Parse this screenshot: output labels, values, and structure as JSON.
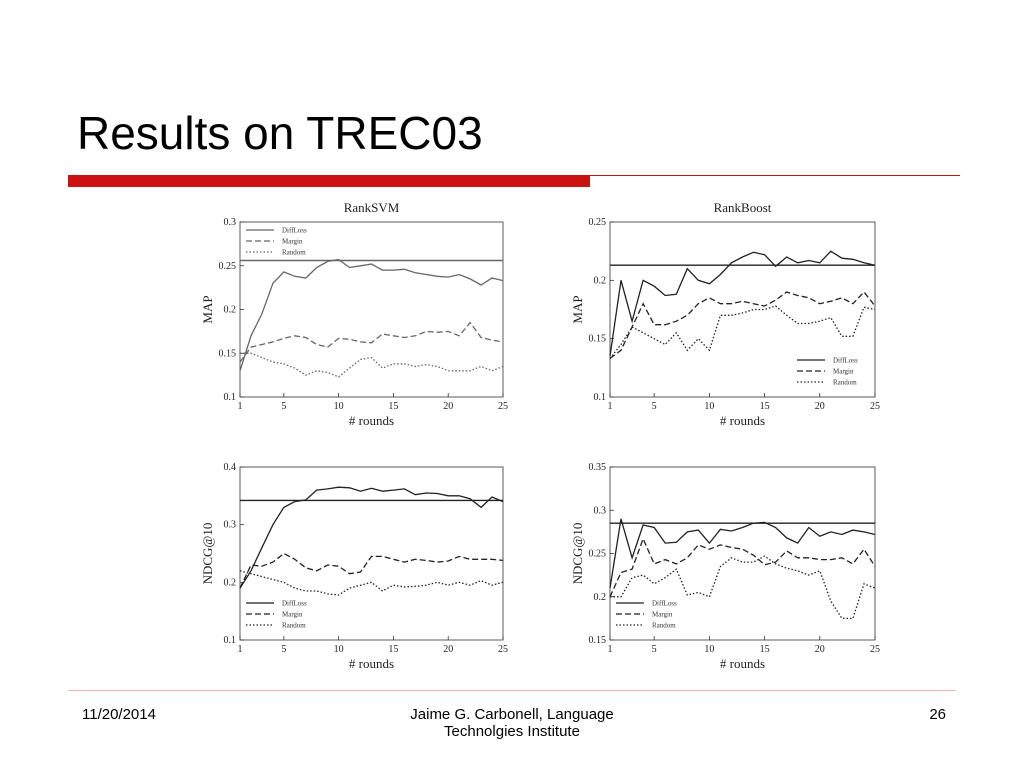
{
  "slide": {
    "title": "Results on TREC03",
    "date": "11/20/2014",
    "author": "Jaime G. Carbonell, Language Technolgies Institute",
    "page": "26"
  },
  "chart_data": [
    {
      "type": "line",
      "title": "RankSVM",
      "y_label": "MAP",
      "x_label": "# rounds",
      "x": [
        1,
        2,
        3,
        4,
        5,
        6,
        7,
        8,
        9,
        10,
        11,
        12,
        13,
        14,
        15,
        16,
        17,
        18,
        19,
        20,
        21,
        22,
        23,
        24,
        25
      ],
      "xlim": [
        1,
        25
      ],
      "xticks": [
        1,
        5,
        10,
        15,
        20,
        25
      ],
      "ylim": [
        0.1,
        0.3
      ],
      "yticks": [
        0.1,
        0.15,
        0.2,
        0.25,
        0.3
      ],
      "baseline": 0.256,
      "legend": "upper left",
      "color": "#666666",
      "series": [
        {
          "name": "DiffLoss",
          "style": "solid",
          "values": [
            0.13,
            0.17,
            0.195,
            0.23,
            0.243,
            0.238,
            0.236,
            0.248,
            0.255,
            0.257,
            0.248,
            0.25,
            0.252,
            0.245,
            0.245,
            0.246,
            0.242,
            0.24,
            0.238,
            0.237,
            0.24,
            0.235,
            0.228,
            0.236,
            0.233
          ]
        },
        {
          "name": "Margin",
          "style": "dashed",
          "values": [
            0.14,
            0.157,
            0.16,
            0.163,
            0.167,
            0.17,
            0.168,
            0.16,
            0.157,
            0.167,
            0.166,
            0.163,
            0.162,
            0.172,
            0.17,
            0.168,
            0.17,
            0.175,
            0.174,
            0.175,
            0.17,
            0.185,
            0.168,
            0.165,
            0.163
          ]
        },
        {
          "name": "Random",
          "style": "dotted",
          "values": [
            0.15,
            0.15,
            0.145,
            0.14,
            0.138,
            0.133,
            0.125,
            0.13,
            0.128,
            0.123,
            0.133,
            0.143,
            0.145,
            0.133,
            0.138,
            0.138,
            0.135,
            0.137,
            0.135,
            0.13,
            0.13,
            0.13,
            0.135,
            0.13,
            0.135
          ]
        }
      ]
    },
    {
      "type": "line",
      "title": "RankBoost",
      "y_label": "MAP",
      "x_label": "# rounds",
      "x": [
        1,
        2,
        3,
        4,
        5,
        6,
        7,
        8,
        9,
        10,
        11,
        12,
        13,
        14,
        15,
        16,
        17,
        18,
        19,
        20,
        21,
        22,
        23,
        24,
        25
      ],
      "xlim": [
        1,
        25
      ],
      "xticks": [
        1,
        5,
        10,
        15,
        20,
        25
      ],
      "ylim": [
        0.1,
        0.25
      ],
      "yticks": [
        0.1,
        0.15,
        0.2,
        0.25
      ],
      "baseline": 0.213,
      "legend": "lower right",
      "color": "#222222",
      "series": [
        {
          "name": "DiffLoss",
          "style": "solid",
          "values": [
            0.135,
            0.2,
            0.165,
            0.2,
            0.195,
            0.187,
            0.188,
            0.21,
            0.2,
            0.197,
            0.205,
            0.215,
            0.22,
            0.224,
            0.222,
            0.212,
            0.22,
            0.215,
            0.217,
            0.215,
            0.225,
            0.219,
            0.218,
            0.215,
            0.213
          ]
        },
        {
          "name": "Margin",
          "style": "dashed",
          "values": [
            0.133,
            0.14,
            0.16,
            0.18,
            0.162,
            0.162,
            0.165,
            0.17,
            0.18,
            0.185,
            0.18,
            0.18,
            0.182,
            0.18,
            0.178,
            0.183,
            0.19,
            0.187,
            0.185,
            0.18,
            0.182,
            0.185,
            0.18,
            0.19,
            0.178
          ]
        },
        {
          "name": "Random",
          "style": "dotted",
          "values": [
            0.133,
            0.145,
            0.16,
            0.155,
            0.15,
            0.145,
            0.155,
            0.14,
            0.15,
            0.14,
            0.17,
            0.17,
            0.172,
            0.175,
            0.175,
            0.178,
            0.17,
            0.163,
            0.163,
            0.165,
            0.168,
            0.152,
            0.152,
            0.177,
            0.175
          ]
        }
      ]
    },
    {
      "type": "line",
      "y_label": "NDCG@10",
      "x_label": "# rounds",
      "x": [
        1,
        2,
        3,
        4,
        5,
        6,
        7,
        8,
        9,
        10,
        11,
        12,
        13,
        14,
        15,
        16,
        17,
        18,
        19,
        20,
        21,
        22,
        23,
        24,
        25
      ],
      "xlim": [
        1,
        25
      ],
      "xticks": [
        1,
        5,
        10,
        15,
        20,
        25
      ],
      "ylim": [
        0.1,
        0.4
      ],
      "yticks": [
        0.1,
        0.2,
        0.3,
        0.4
      ],
      "baseline": 0.342,
      "legend": "lower left",
      "color": "#222222",
      "series": [
        {
          "name": "DiffLoss",
          "style": "solid",
          "values": [
            0.19,
            0.22,
            0.26,
            0.3,
            0.33,
            0.34,
            0.343,
            0.36,
            0.362,
            0.365,
            0.364,
            0.358,
            0.363,
            0.358,
            0.36,
            0.362,
            0.352,
            0.355,
            0.354,
            0.35,
            0.35,
            0.345,
            0.33,
            0.348,
            0.34
          ]
        },
        {
          "name": "Margin",
          "style": "dashed",
          "values": [
            0.19,
            0.23,
            0.228,
            0.235,
            0.25,
            0.24,
            0.225,
            0.22,
            0.23,
            0.228,
            0.215,
            0.218,
            0.245,
            0.245,
            0.24,
            0.235,
            0.24,
            0.238,
            0.235,
            0.237,
            0.245,
            0.24,
            0.24,
            0.24,
            0.238
          ]
        },
        {
          "name": "Random",
          "style": "dotted",
          "values": [
            0.22,
            0.215,
            0.21,
            0.205,
            0.2,
            0.19,
            0.185,
            0.185,
            0.18,
            0.178,
            0.19,
            0.195,
            0.2,
            0.185,
            0.195,
            0.192,
            0.193,
            0.195,
            0.2,
            0.195,
            0.2,
            0.195,
            0.203,
            0.195,
            0.2
          ]
        }
      ]
    },
    {
      "type": "line",
      "y_label": "NDCG@10",
      "x_label": "# rounds",
      "x": [
        1,
        2,
        3,
        4,
        5,
        6,
        7,
        8,
        9,
        10,
        11,
        12,
        13,
        14,
        15,
        16,
        17,
        18,
        19,
        20,
        21,
        22,
        23,
        24,
        25
      ],
      "xlim": [
        1,
        25
      ],
      "xticks": [
        1,
        5,
        10,
        15,
        20,
        25
      ],
      "ylim": [
        0.15,
        0.35
      ],
      "yticks": [
        0.15,
        0.2,
        0.25,
        0.3,
        0.35
      ],
      "baseline": 0.285,
      "legend": "lower left",
      "color": "#222222",
      "series": [
        {
          "name": "DiffLoss",
          "style": "solid",
          "values": [
            0.21,
            0.29,
            0.245,
            0.283,
            0.28,
            0.262,
            0.263,
            0.275,
            0.277,
            0.262,
            0.278,
            0.276,
            0.28,
            0.285,
            0.286,
            0.28,
            0.268,
            0.262,
            0.28,
            0.27,
            0.275,
            0.272,
            0.277,
            0.275,
            0.272
          ]
        },
        {
          "name": "Margin",
          "style": "dashed",
          "values": [
            0.2,
            0.228,
            0.232,
            0.267,
            0.238,
            0.243,
            0.238,
            0.245,
            0.26,
            0.255,
            0.26,
            0.257,
            0.255,
            0.248,
            0.237,
            0.24,
            0.253,
            0.245,
            0.245,
            0.243,
            0.243,
            0.245,
            0.238,
            0.255,
            0.235
          ]
        },
        {
          "name": "Random",
          "style": "dotted",
          "values": [
            0.2,
            0.2,
            0.222,
            0.225,
            0.215,
            0.222,
            0.232,
            0.202,
            0.205,
            0.2,
            0.235,
            0.245,
            0.24,
            0.24,
            0.247,
            0.238,
            0.233,
            0.23,
            0.225,
            0.23,
            0.195,
            0.175,
            0.175,
            0.215,
            0.21
          ]
        }
      ]
    }
  ]
}
